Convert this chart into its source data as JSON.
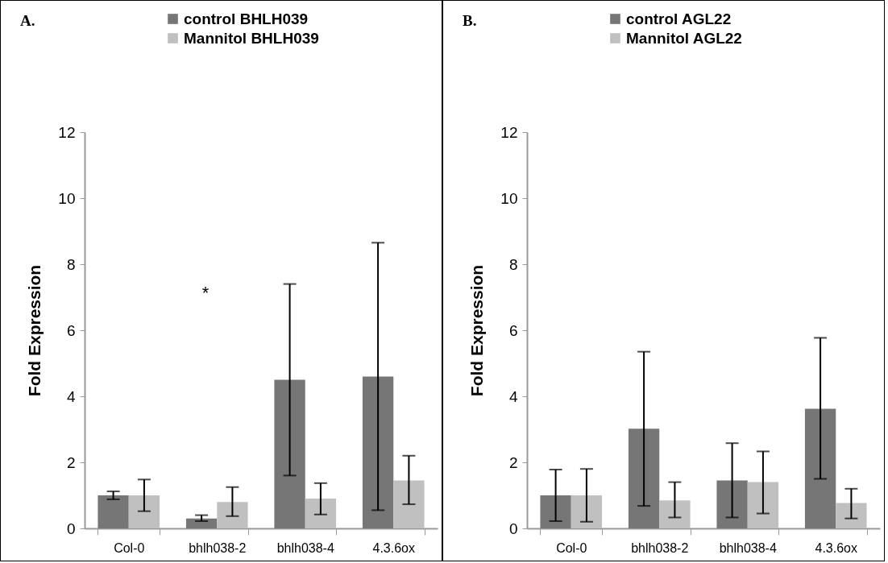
{
  "chart_data": [
    {
      "type": "bar",
      "title": "A.",
      "ylabel": "Fold Expression",
      "categories": [
        "Col-0",
        "bhlh038-2",
        "bhlh038-4",
        "4.3.6ox"
      ],
      "series": [
        {
          "name": "control BHLH039",
          "color": "#767676",
          "values": [
            1.0,
            0.3,
            4.5,
            4.6
          ],
          "errors": [
            [
              0.88,
              1.12
            ],
            [
              0.22,
              0.4
            ],
            [
              1.6,
              7.4
            ],
            [
              0.55,
              8.65
            ]
          ]
        },
        {
          "name": "Mannitol BHLH039",
          "color": "#c0c0c0",
          "values": [
            1.0,
            0.8,
            0.9,
            1.45
          ],
          "errors": [
            [
              0.52,
              1.48
            ],
            [
              0.37,
              1.25
            ],
            [
              0.42,
              1.37
            ],
            [
              0.73,
              2.2
            ]
          ]
        }
      ],
      "ylim": [
        0,
        12
      ],
      "yticks": [
        0,
        2,
        4,
        6,
        8,
        10,
        12
      ],
      "grid": false,
      "legend": "top",
      "annotations": [
        "*"
      ]
    },
    {
      "type": "bar",
      "title": "B.",
      "ylabel": "Fold Expression",
      "categories": [
        "Col-0",
        "bhlh038-2",
        "bhlh038-4",
        "4.3.6ox"
      ],
      "series": [
        {
          "name": "control AGL22",
          "color": "#767676",
          "values": [
            1.0,
            3.02,
            1.45,
            3.62
          ],
          "errors": [
            [
              0.22,
              1.78
            ],
            [
              0.68,
              5.35
            ],
            [
              0.33,
              2.58
            ],
            [
              1.5,
              5.77
            ]
          ]
        },
        {
          "name": "Mannitol AGL22",
          "color": "#c0c0c0",
          "values": [
            1.0,
            0.85,
            1.4,
            0.77
          ],
          "errors": [
            [
              0.2,
              1.8
            ],
            [
              0.33,
              1.4
            ],
            [
              0.45,
              2.33
            ],
            [
              0.3,
              1.2
            ]
          ]
        }
      ],
      "ylim": [
        0,
        12
      ],
      "yticks": [
        0,
        2,
        4,
        6,
        8,
        10,
        12
      ],
      "grid": false,
      "legend": "top"
    }
  ]
}
